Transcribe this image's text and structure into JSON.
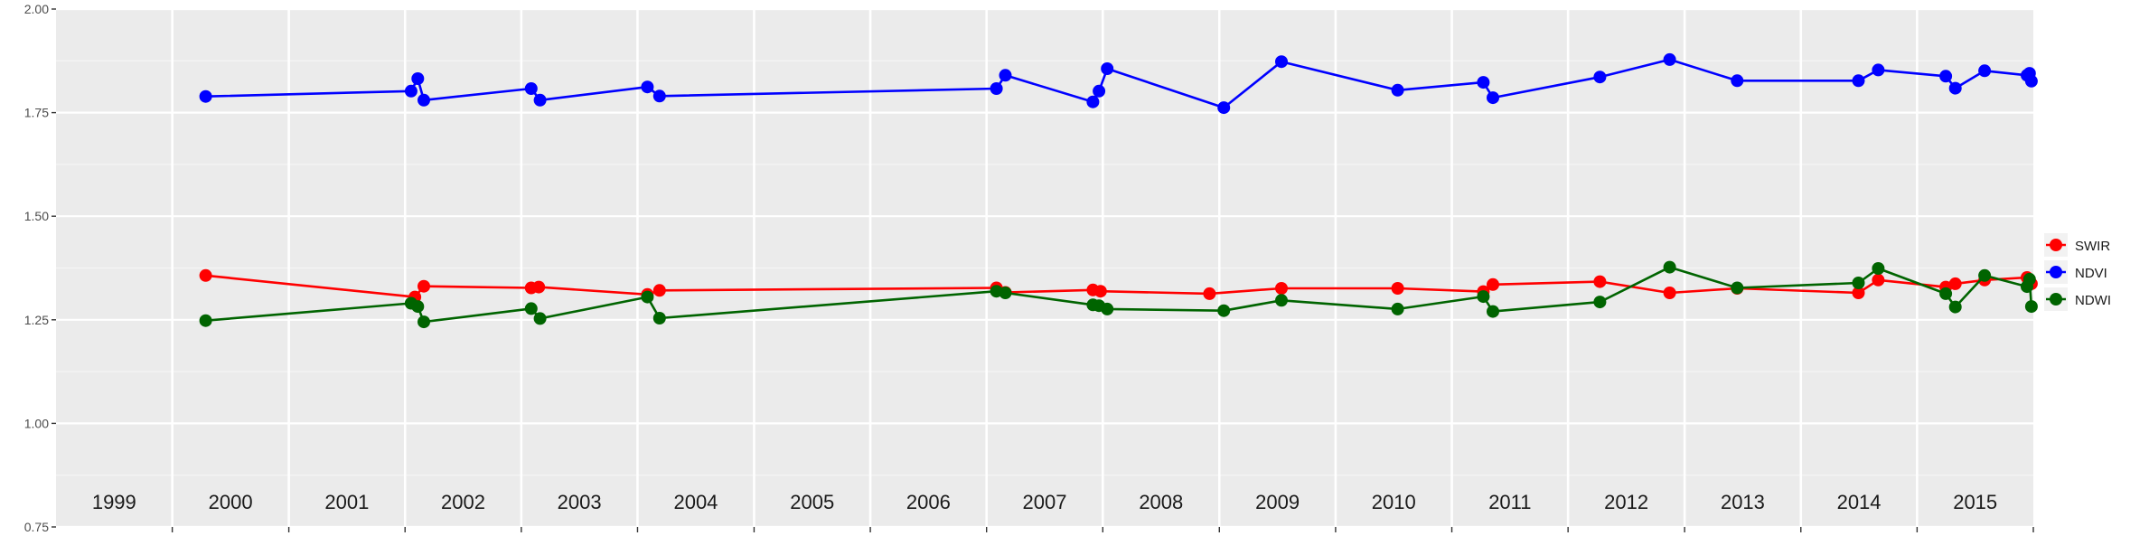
{
  "chart_data": {
    "type": "line",
    "title": "",
    "xlabel": "",
    "ylabel": "",
    "ylim": [
      0.75,
      2.0
    ],
    "y_ticks": [
      "0.75",
      "1.00",
      "1.25",
      "1.50",
      "1.75",
      "2.00"
    ],
    "xlim": [
      "1999-01-01",
      "2016-01-01"
    ],
    "year_labels": [
      "1999",
      "2000",
      "2001",
      "2002",
      "2003",
      "2004",
      "2005",
      "2006",
      "2007",
      "2008",
      "2009",
      "2010",
      "2011",
      "2012",
      "2013",
      "2014",
      "2015"
    ],
    "grid": true,
    "background": "#ebebeb",
    "legend_position": "right",
    "series": [
      {
        "name": "SWIR",
        "color": "#ff0000",
        "x": [
          "2000-04-15",
          "2002-02-01",
          "2002-03-01",
          "2003-02-01",
          "2003-02-25",
          "2004-02-01",
          "2004-03-10",
          "2007-02-01",
          "2007-03-01",
          "2007-12-01",
          "2007-12-25",
          "2008-12-01",
          "2009-07-15",
          "2010-07-15",
          "2011-04-10",
          "2011-05-10",
          "2012-04-10",
          "2012-11-15",
          "2013-06-15",
          "2014-07-01",
          "2014-09-01",
          "2015-04-01",
          "2015-05-01",
          "2015-08-01",
          "2015-12-12",
          "2015-12-20",
          "2015-12-26"
        ],
        "values": [
          1.357,
          1.305,
          1.331,
          1.327,
          1.329,
          1.311,
          1.321,
          1.327,
          1.316,
          1.322,
          1.319,
          1.313,
          1.326,
          1.326,
          1.318,
          1.335,
          1.342,
          1.315,
          1.326,
          1.315,
          1.346,
          1.329,
          1.337,
          1.346,
          1.352,
          1.345,
          1.337
        ]
      },
      {
        "name": "NDVI",
        "color": "#0000ff",
        "x": [
          "2000-04-15",
          "2002-01-20",
          "2002-02-10",
          "2002-03-01",
          "2003-02-01",
          "2003-03-01",
          "2004-02-01",
          "2004-03-10",
          "2007-02-01",
          "2007-03-01",
          "2007-12-01",
          "2007-12-20",
          "2008-01-15",
          "2009-01-15",
          "2009-07-15",
          "2010-07-15",
          "2011-04-10",
          "2011-05-10",
          "2012-04-10",
          "2012-11-15",
          "2013-06-15",
          "2014-07-01",
          "2014-09-01",
          "2015-04-01",
          "2015-05-01",
          "2015-08-01",
          "2015-12-12",
          "2015-12-20",
          "2015-12-26"
        ],
        "values": [
          1.789,
          1.802,
          1.832,
          1.78,
          1.808,
          1.78,
          1.812,
          1.79,
          1.808,
          1.84,
          1.776,
          1.802,
          1.856,
          1.762,
          1.873,
          1.804,
          1.823,
          1.786,
          1.836,
          1.878,
          1.827,
          1.827,
          1.853,
          1.838,
          1.809,
          1.851,
          1.84,
          1.845,
          1.826
        ]
      },
      {
        "name": "NDWI",
        "color": "#006400",
        "x": [
          "2000-04-15",
          "2002-01-20",
          "2002-02-10",
          "2002-03-01",
          "2003-02-01",
          "2003-03-01",
          "2004-02-01",
          "2004-03-10",
          "2007-02-01",
          "2007-03-01",
          "2007-12-01",
          "2007-12-20",
          "2008-01-15",
          "2009-01-15",
          "2009-07-15",
          "2010-07-15",
          "2011-04-10",
          "2011-05-10",
          "2012-04-10",
          "2012-11-15",
          "2013-06-15",
          "2014-07-01",
          "2014-09-01",
          "2015-04-01",
          "2015-05-01",
          "2015-08-01",
          "2015-12-12",
          "2015-12-20",
          "2015-12-26"
        ],
        "values": [
          1.248,
          1.29,
          1.282,
          1.245,
          1.277,
          1.253,
          1.305,
          1.254,
          1.319,
          1.315,
          1.286,
          1.284,
          1.276,
          1.272,
          1.297,
          1.276,
          1.306,
          1.27,
          1.293,
          1.377,
          1.327,
          1.339,
          1.374,
          1.313,
          1.281,
          1.357,
          1.33,
          1.348,
          1.282
        ]
      }
    ],
    "legend": [
      "SWIR",
      "NDVI",
      "NDWI"
    ]
  }
}
